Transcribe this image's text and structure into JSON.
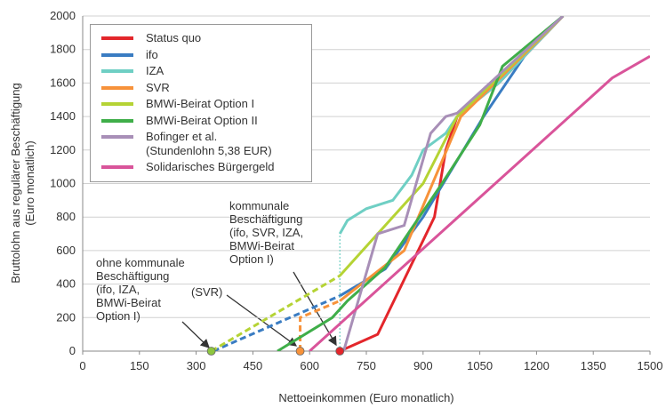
{
  "chart_data": {
    "type": "line",
    "xlabel": "Nettoeinkommen (Euro monatlich)",
    "ylabel": [
      "Bruttolohn aus regulärer Beschäftigung",
      "(Euro monatlich)"
    ],
    "xlim": [
      0,
      1500
    ],
    "xticks": [
      0,
      150,
      300,
      450,
      600,
      750,
      900,
      1050,
      1200,
      1350,
      1500
    ],
    "ylim": [
      0,
      2000
    ],
    "yticks": [
      0,
      200,
      400,
      600,
      800,
      1000,
      1200,
      1400,
      1600,
      1800,
      2000
    ],
    "grid": true,
    "legend": "upper left",
    "series": [
      {
        "name": "Status quo",
        "color": "#e3262b",
        "x": [
          680,
          780,
          930,
          960,
          990,
          1100,
          1270
        ],
        "values": [
          0,
          100,
          800,
          1200,
          1400,
          1600,
          2000
        ]
      },
      {
        "name": "ifo",
        "color": "#3a7cc2",
        "dashed_points": 2,
        "x": [
          345,
          680,
          800,
          900,
          1060,
          1180,
          1270
        ],
        "values": [
          0,
          330,
          490,
          800,
          1400,
          1800,
          2000
        ]
      },
      {
        "name": "IZA",
        "color": "#6fcfc4",
        "dashed_points": 2,
        "x": [
          680,
          680,
          700,
          750,
          820,
          870,
          900,
          960,
          990,
          1100,
          1270
        ],
        "values": [
          0,
          700,
          780,
          850,
          900,
          1050,
          1200,
          1300,
          1400,
          1600,
          2000
        ]
      },
      {
        "name": "SVR",
        "color": "#f7923a",
        "dashed_points": 3,
        "x": [
          575,
          575,
          680,
          850,
          1000,
          1270
        ],
        "values": [
          0,
          200,
          300,
          600,
          1400,
          2000
        ]
      },
      {
        "name": "BMWi-Beirat Option I",
        "color": "#b5d334",
        "dashed_points": 2,
        "x": [
          340,
          680,
          780,
          900,
          990,
          1270
        ],
        "values": [
          0,
          450,
          700,
          1000,
          1400,
          2000
        ]
      },
      {
        "name": "BMWi-Beirat Option II",
        "color": "#3fae49",
        "x": [
          515,
          660,
          700,
          800,
          950,
          1050,
          1110,
          1270
        ],
        "values": [
          0,
          200,
          300,
          500,
          1000,
          1350,
          1700,
          2000
        ]
      },
      {
        "name": "Bofinger et al.\n(Stundenlohn 5,38 EUR)",
        "color": "#a88fb7",
        "x": [
          690,
          780,
          850,
          920,
          960,
          990,
          1270
        ],
        "values": [
          0,
          700,
          750,
          1300,
          1400,
          1420,
          2000
        ]
      },
      {
        "name": "Solidarisches Bürgergeld",
        "color": "#d9549a",
        "x": [
          600,
          1400,
          1500
        ],
        "values": [
          0,
          1630,
          1760
        ]
      }
    ],
    "markers": {
      "x": [
        340,
        575,
        680
      ],
      "values": [
        0,
        0,
        0
      ],
      "colors": [
        "#8dc63f",
        "#f7923a",
        "#e3262b"
      ]
    },
    "annotations": [
      "kommunale\nBeschäftigung\n(ifo, SVR, IZA,\nBMWi-Beirat\nOption I)",
      "ohne kommunale\nBeschäftigung\n(ifo, IZA,\nBMWi-Beirat\nOption I)",
      "(SVR)"
    ]
  }
}
